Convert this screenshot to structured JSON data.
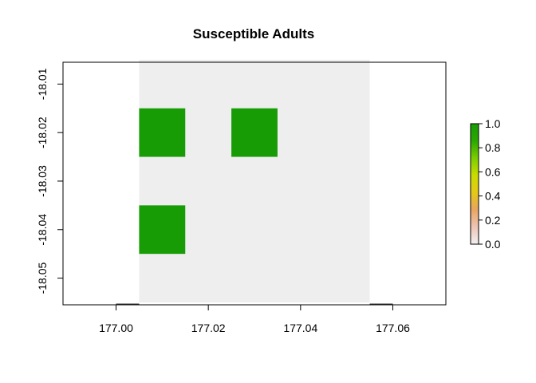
{
  "chart_data": {
    "type": "heatmap",
    "title": "Susceptible Adults",
    "xlabel": "",
    "ylabel": "",
    "xlim": [
      176.9885,
      177.0715
    ],
    "ylim": [
      -18.0555,
      -18.0055
    ],
    "raster_extent": {
      "xmin": 177.005,
      "xmax": 177.055,
      "ymin": -18.055,
      "ymax": -18.005
    },
    "cell_size": 0.01,
    "x_ticks": [
      177.0,
      177.02,
      177.04,
      177.06
    ],
    "x_tick_labels": [
      "177.00",
      "177.02",
      "177.04",
      "177.06"
    ],
    "y_ticks": [
      -18.01,
      -18.02,
      -18.03,
      -18.04,
      -18.05
    ],
    "y_tick_labels": [
      "-18.01",
      "-18.02",
      "-18.03",
      "-18.04",
      "-18.05"
    ],
    "raster_background_value": 0,
    "cells": [
      {
        "x": 177.01,
        "y": -18.02,
        "value": 1.0
      },
      {
        "x": 177.03,
        "y": -18.02,
        "value": 1.0
      },
      {
        "x": 177.01,
        "y": -18.04,
        "value": 1.0
      }
    ],
    "colors": {
      "background_cell": "#eeeeee",
      "full_cell": "#179c06"
    },
    "legend": {
      "placement": "right",
      "range": [
        0.0,
        1.0
      ],
      "ticks": [
        0.0,
        0.2,
        0.4,
        0.6,
        0.8,
        1.0
      ],
      "tick_labels": [
        "0.0",
        "0.2",
        "0.4",
        "0.6",
        "0.8",
        "1.0"
      ],
      "gradient": [
        "#f2f2f2",
        "#eec4b5",
        "#e8a561",
        "#e5c915",
        "#c9dc00",
        "#7bcd00",
        "#2aa800",
        "#179c06"
      ]
    },
    "grid": false
  }
}
